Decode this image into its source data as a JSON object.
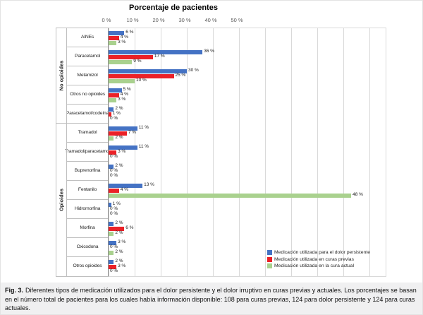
{
  "chart": {
    "title": "Porcentaje de pacientes"
  },
  "chart_data": {
    "type": "bar",
    "orientation": "horizontal",
    "title": "Porcentaje de pacientes",
    "xlabel": "Porcentaje de pacientes",
    "value_suffix": " %",
    "xlim": [
      0,
      50
    ],
    "grid": true,
    "legend_position": "bottom-right",
    "ticks": [
      {
        "value": 0,
        "label": "0 %"
      },
      {
        "value": 10,
        "label": "10 %"
      },
      {
        "value": 20,
        "label": "20 %"
      },
      {
        "value": 30,
        "label": "30 %"
      },
      {
        "value": 40,
        "label": "40 %"
      },
      {
        "value": 50,
        "label": "50 %"
      }
    ],
    "groups": [
      {
        "label": "No opioides",
        "span": 5
      },
      {
        "label": "Opioides",
        "span": 8
      }
    ],
    "categories": [
      "AINEs",
      "Paracetamol",
      "Metamizol",
      "Otros no opioides",
      "Paracetamol/codeína",
      "Tramadol",
      "Tramadol/paracetamol",
      "Buprenorfina",
      "Fentanilo",
      "Hidromorfina",
      "Morfina",
      "Oxicodona",
      "Otros opioides"
    ],
    "series": [
      {
        "name": "Medicación utilizada para el dolor persistente",
        "color": "#4472C4",
        "values": [
          6,
          36,
          30,
          5,
          2,
          11,
          11,
          2,
          13,
          1,
          2,
          3,
          2
        ]
      },
      {
        "name": "Medicación utilizada en curas previas",
        "color": "#EB2127",
        "values": [
          4,
          17,
          25,
          4,
          1,
          7,
          3,
          0,
          4,
          0,
          6,
          0,
          3
        ]
      },
      {
        "name": "Medicación utilizada en la cura actual",
        "color": "#A9D18E",
        "values": [
          3,
          9,
          10,
          3,
          0,
          2,
          0,
          0,
          48,
          0,
          2,
          2,
          0
        ]
      }
    ],
    "render_anomaly": {
      "note": "In the source figure the current-cure bar for Fentanilo is drawn far beyond its labeled value of 48 %.",
      "category": "Fentanilo",
      "series_index": 2,
      "drawn_value_pct": 93
    }
  },
  "caption": {
    "fig_label": "Fig. 3.",
    "text": "Diferentes tipos de medicación utilizados para el dolor persistente y el dolor irruptivo en curas previas y actuales. Los porcentajes se basan en el número total de pacientes para los cuales había información disponible: 108 para curas previas, 124 para dolor persistente y 124 para curas actuales."
  }
}
